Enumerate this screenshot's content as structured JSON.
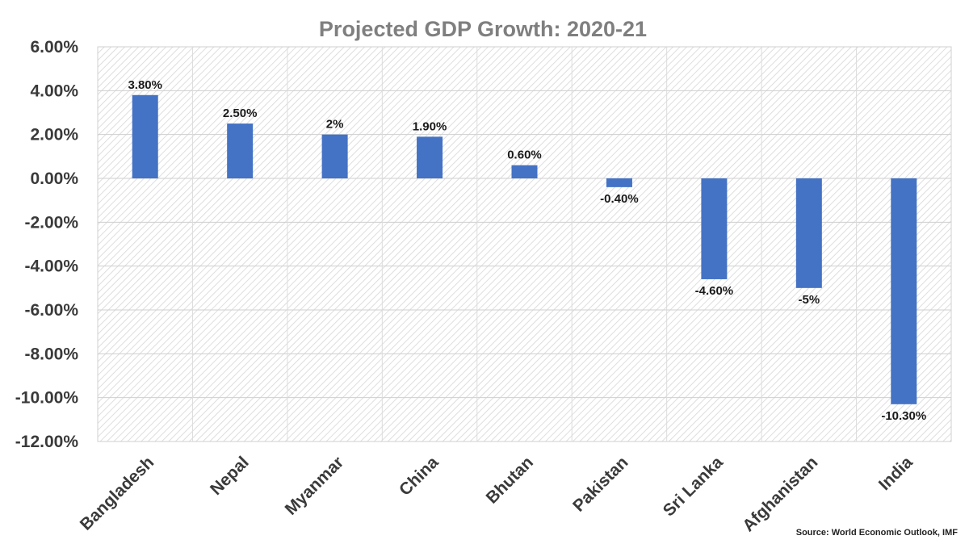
{
  "chart_data": {
    "type": "bar",
    "title": "Projected GDP Growth: 2020-21",
    "categories": [
      "Bangladesh",
      "Nepal",
      "Myanmar",
      "China",
      "Bhutan",
      "Pakistan",
      "Sri Lanka",
      "Afghanistan",
      "India"
    ],
    "values": [
      3.8,
      2.5,
      2.0,
      1.9,
      0.6,
      -0.4,
      -4.6,
      -5.0,
      -10.3
    ],
    "data_labels": [
      "3.80%",
      "2.50%",
      "2%",
      "1.90%",
      "0.60%",
      "-0.40%",
      "-4.60%",
      "-5%",
      "-10.30%"
    ],
    "ylim": [
      -12,
      6
    ],
    "yticks": [
      6,
      4,
      2,
      0,
      -2,
      -4,
      -6,
      -8,
      -10,
      -12
    ],
    "ytick_labels": [
      "6.00%",
      "4.00%",
      "2.00%",
      "0.00%",
      "-2.00%",
      "-4.00%",
      "-6.00%",
      "-8.00%",
      "-10.00%",
      "-12.00%"
    ],
    "xlabel": "",
    "ylabel": "",
    "grid": true,
    "bar_color": "#4472c4",
    "source": "Source: World Economic Outlook, IMF"
  }
}
